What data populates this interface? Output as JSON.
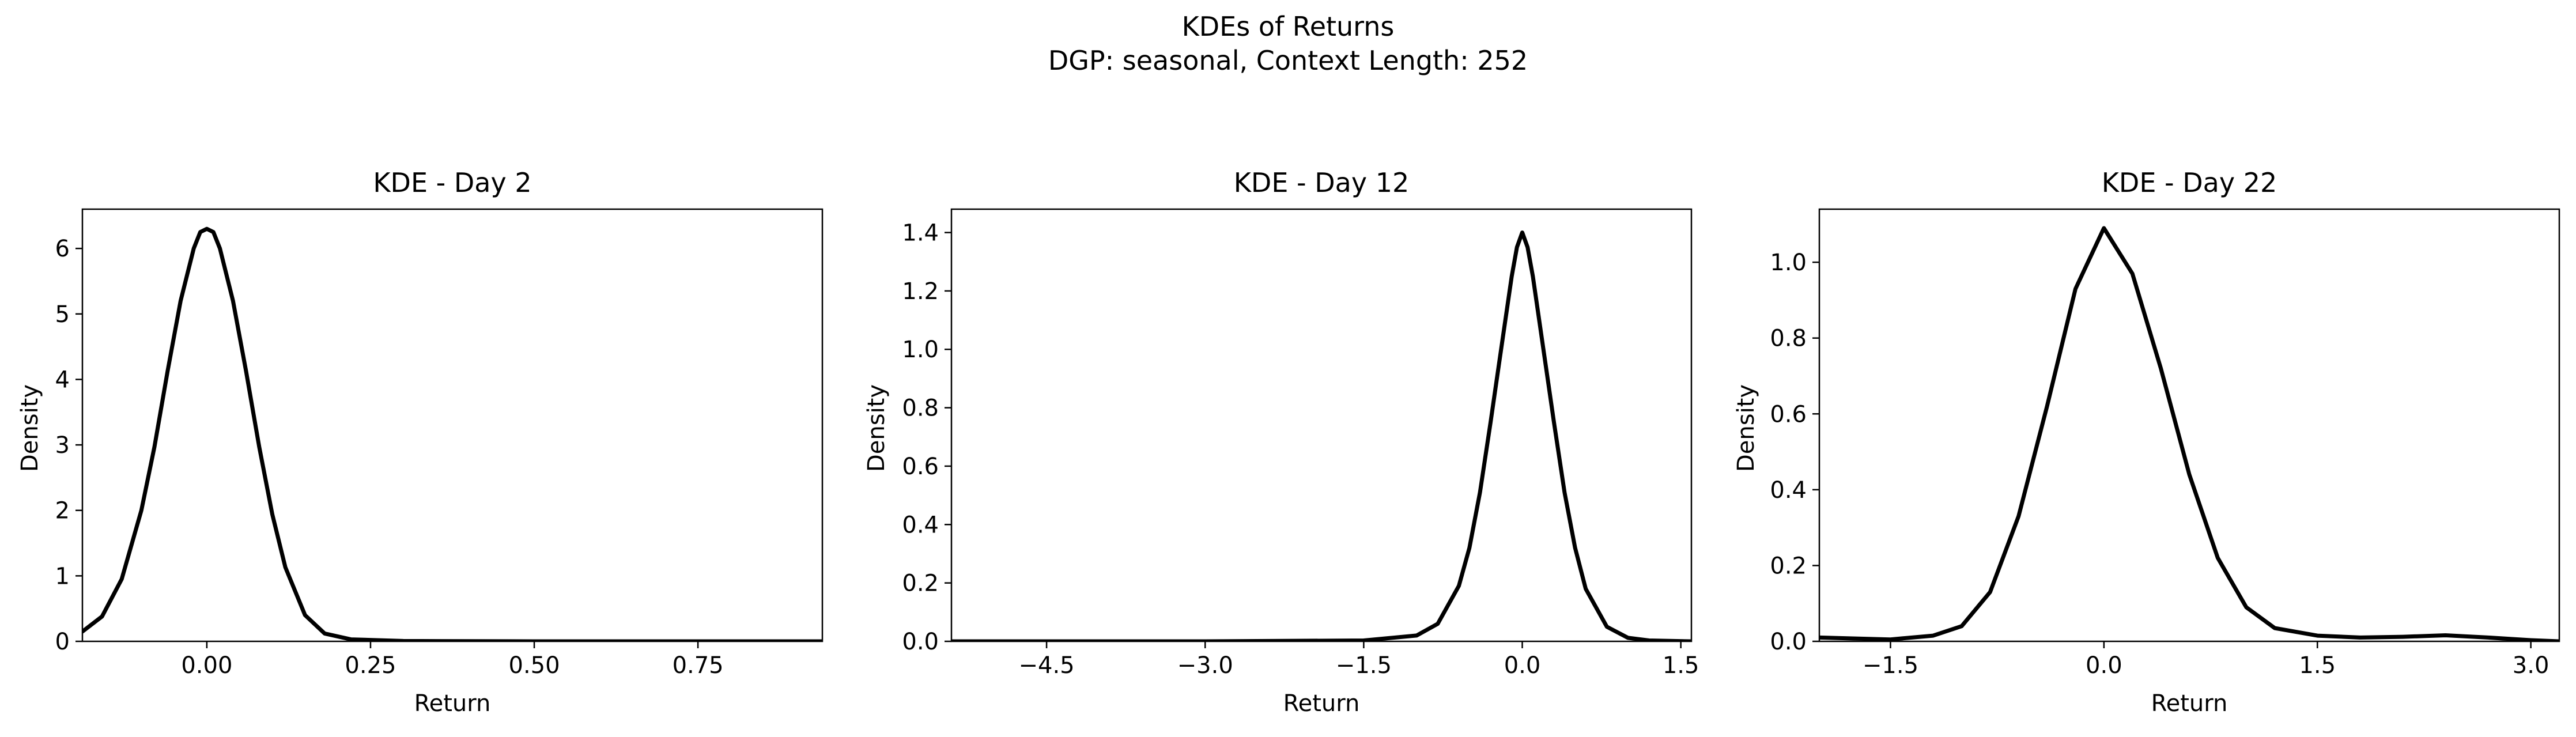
{
  "figure": {
    "title_line1": "KDEs of Returns",
    "title_line2": "DGP: seasonal, Context Length: 252"
  },
  "chart_data": [
    {
      "type": "line",
      "title": "KDE - Day 2",
      "xlabel": "Return",
      "ylabel": "Density",
      "xlim": [
        -0.19,
        0.94
      ],
      "ylim": [
        0,
        6.6
      ],
      "xticks": [
        0.0,
        0.25,
        0.5,
        0.75
      ],
      "xtick_labels": [
        "0.00",
        "0.25",
        "0.50",
        "0.75"
      ],
      "yticks": [
        0,
        1,
        2,
        3,
        4,
        5,
        6
      ],
      "ytick_labels": [
        "0",
        "1",
        "2",
        "3",
        "4",
        "5",
        "6"
      ],
      "grid": false,
      "series": [
        {
          "color": "#000000",
          "x": [
            -0.19,
            -0.16,
            -0.13,
            -0.1,
            -0.08,
            -0.06,
            -0.04,
            -0.02,
            -0.01,
            0.0,
            0.01,
            0.02,
            0.04,
            0.06,
            0.08,
            0.1,
            0.12,
            0.15,
            0.18,
            0.22,
            0.3,
            0.5,
            0.75,
            0.94
          ],
          "y": [
            0.15,
            0.38,
            0.95,
            2.0,
            2.97,
            4.12,
            5.2,
            6.0,
            6.25,
            6.3,
            6.25,
            6.0,
            5.2,
            4.12,
            2.97,
            1.94,
            1.13,
            0.4,
            0.12,
            0.03,
            0.005,
            0.0,
            0.0,
            0.0
          ]
        }
      ]
    },
    {
      "type": "line",
      "title": "KDE - Day 12",
      "xlabel": "Return",
      "ylabel": "Density",
      "xlim": [
        -5.4,
        1.6
      ],
      "ylim": [
        0,
        1.48
      ],
      "xticks": [
        -4.5,
        -3.0,
        -1.5,
        0.0,
        1.5
      ],
      "xtick_labels": [
        "−4.5",
        "−3.0",
        "−1.5",
        "0.0",
        "1.5"
      ],
      "yticks": [
        0,
        0.2,
        0.4,
        0.6,
        0.8,
        1.0,
        1.2,
        1.4
      ],
      "ytick_labels": [
        "0.0",
        "0.2",
        "0.4",
        "0.6",
        "0.8",
        "1.0",
        "1.2",
        "1.4"
      ],
      "grid": false,
      "series": [
        {
          "color": "#000000",
          "x": [
            -5.4,
            -3.0,
            -1.5,
            -1.0,
            -0.8,
            -0.6,
            -0.5,
            -0.4,
            -0.3,
            -0.2,
            -0.1,
            -0.05,
            0.0,
            0.05,
            0.1,
            0.2,
            0.3,
            0.4,
            0.5,
            0.6,
            0.8,
            1.0,
            1.2,
            1.6
          ],
          "y": [
            0.0,
            0.0,
            0.003,
            0.02,
            0.06,
            0.19,
            0.32,
            0.51,
            0.75,
            1.0,
            1.25,
            1.35,
            1.4,
            1.35,
            1.25,
            1.0,
            0.75,
            0.51,
            0.32,
            0.18,
            0.05,
            0.012,
            0.003,
            0.0
          ]
        }
      ]
    },
    {
      "type": "line",
      "title": "KDE - Day 22",
      "xlabel": "Return",
      "ylabel": "Density",
      "xlim": [
        -2.0,
        3.2
      ],
      "ylim": [
        0,
        1.14
      ],
      "xticks": [
        -1.5,
        0.0,
        1.5,
        3.0
      ],
      "xtick_labels": [
        "−1.5",
        "0.0",
        "1.5",
        "3.0"
      ],
      "yticks": [
        0,
        0.2,
        0.4,
        0.6,
        0.8,
        1.0
      ],
      "ytick_labels": [
        "0.0",
        "0.2",
        "0.4",
        "0.6",
        "0.8",
        "1.0"
      ],
      "grid": false,
      "series": [
        {
          "color": "#000000",
          "x": [
            -2.0,
            -1.8,
            -1.5,
            -1.2,
            -1.0,
            -0.8,
            -0.6,
            -0.4,
            -0.2,
            0.0,
            0.2,
            0.4,
            0.6,
            0.8,
            1.0,
            1.2,
            1.5,
            1.8,
            2.1,
            2.4,
            2.7,
            3.0,
            3.2
          ],
          "y": [
            0.01,
            0.008,
            0.005,
            0.015,
            0.04,
            0.13,
            0.33,
            0.62,
            0.93,
            1.09,
            0.97,
            0.72,
            0.44,
            0.22,
            0.09,
            0.035,
            0.015,
            0.01,
            0.012,
            0.016,
            0.01,
            0.003,
            0.0
          ]
        }
      ]
    }
  ]
}
